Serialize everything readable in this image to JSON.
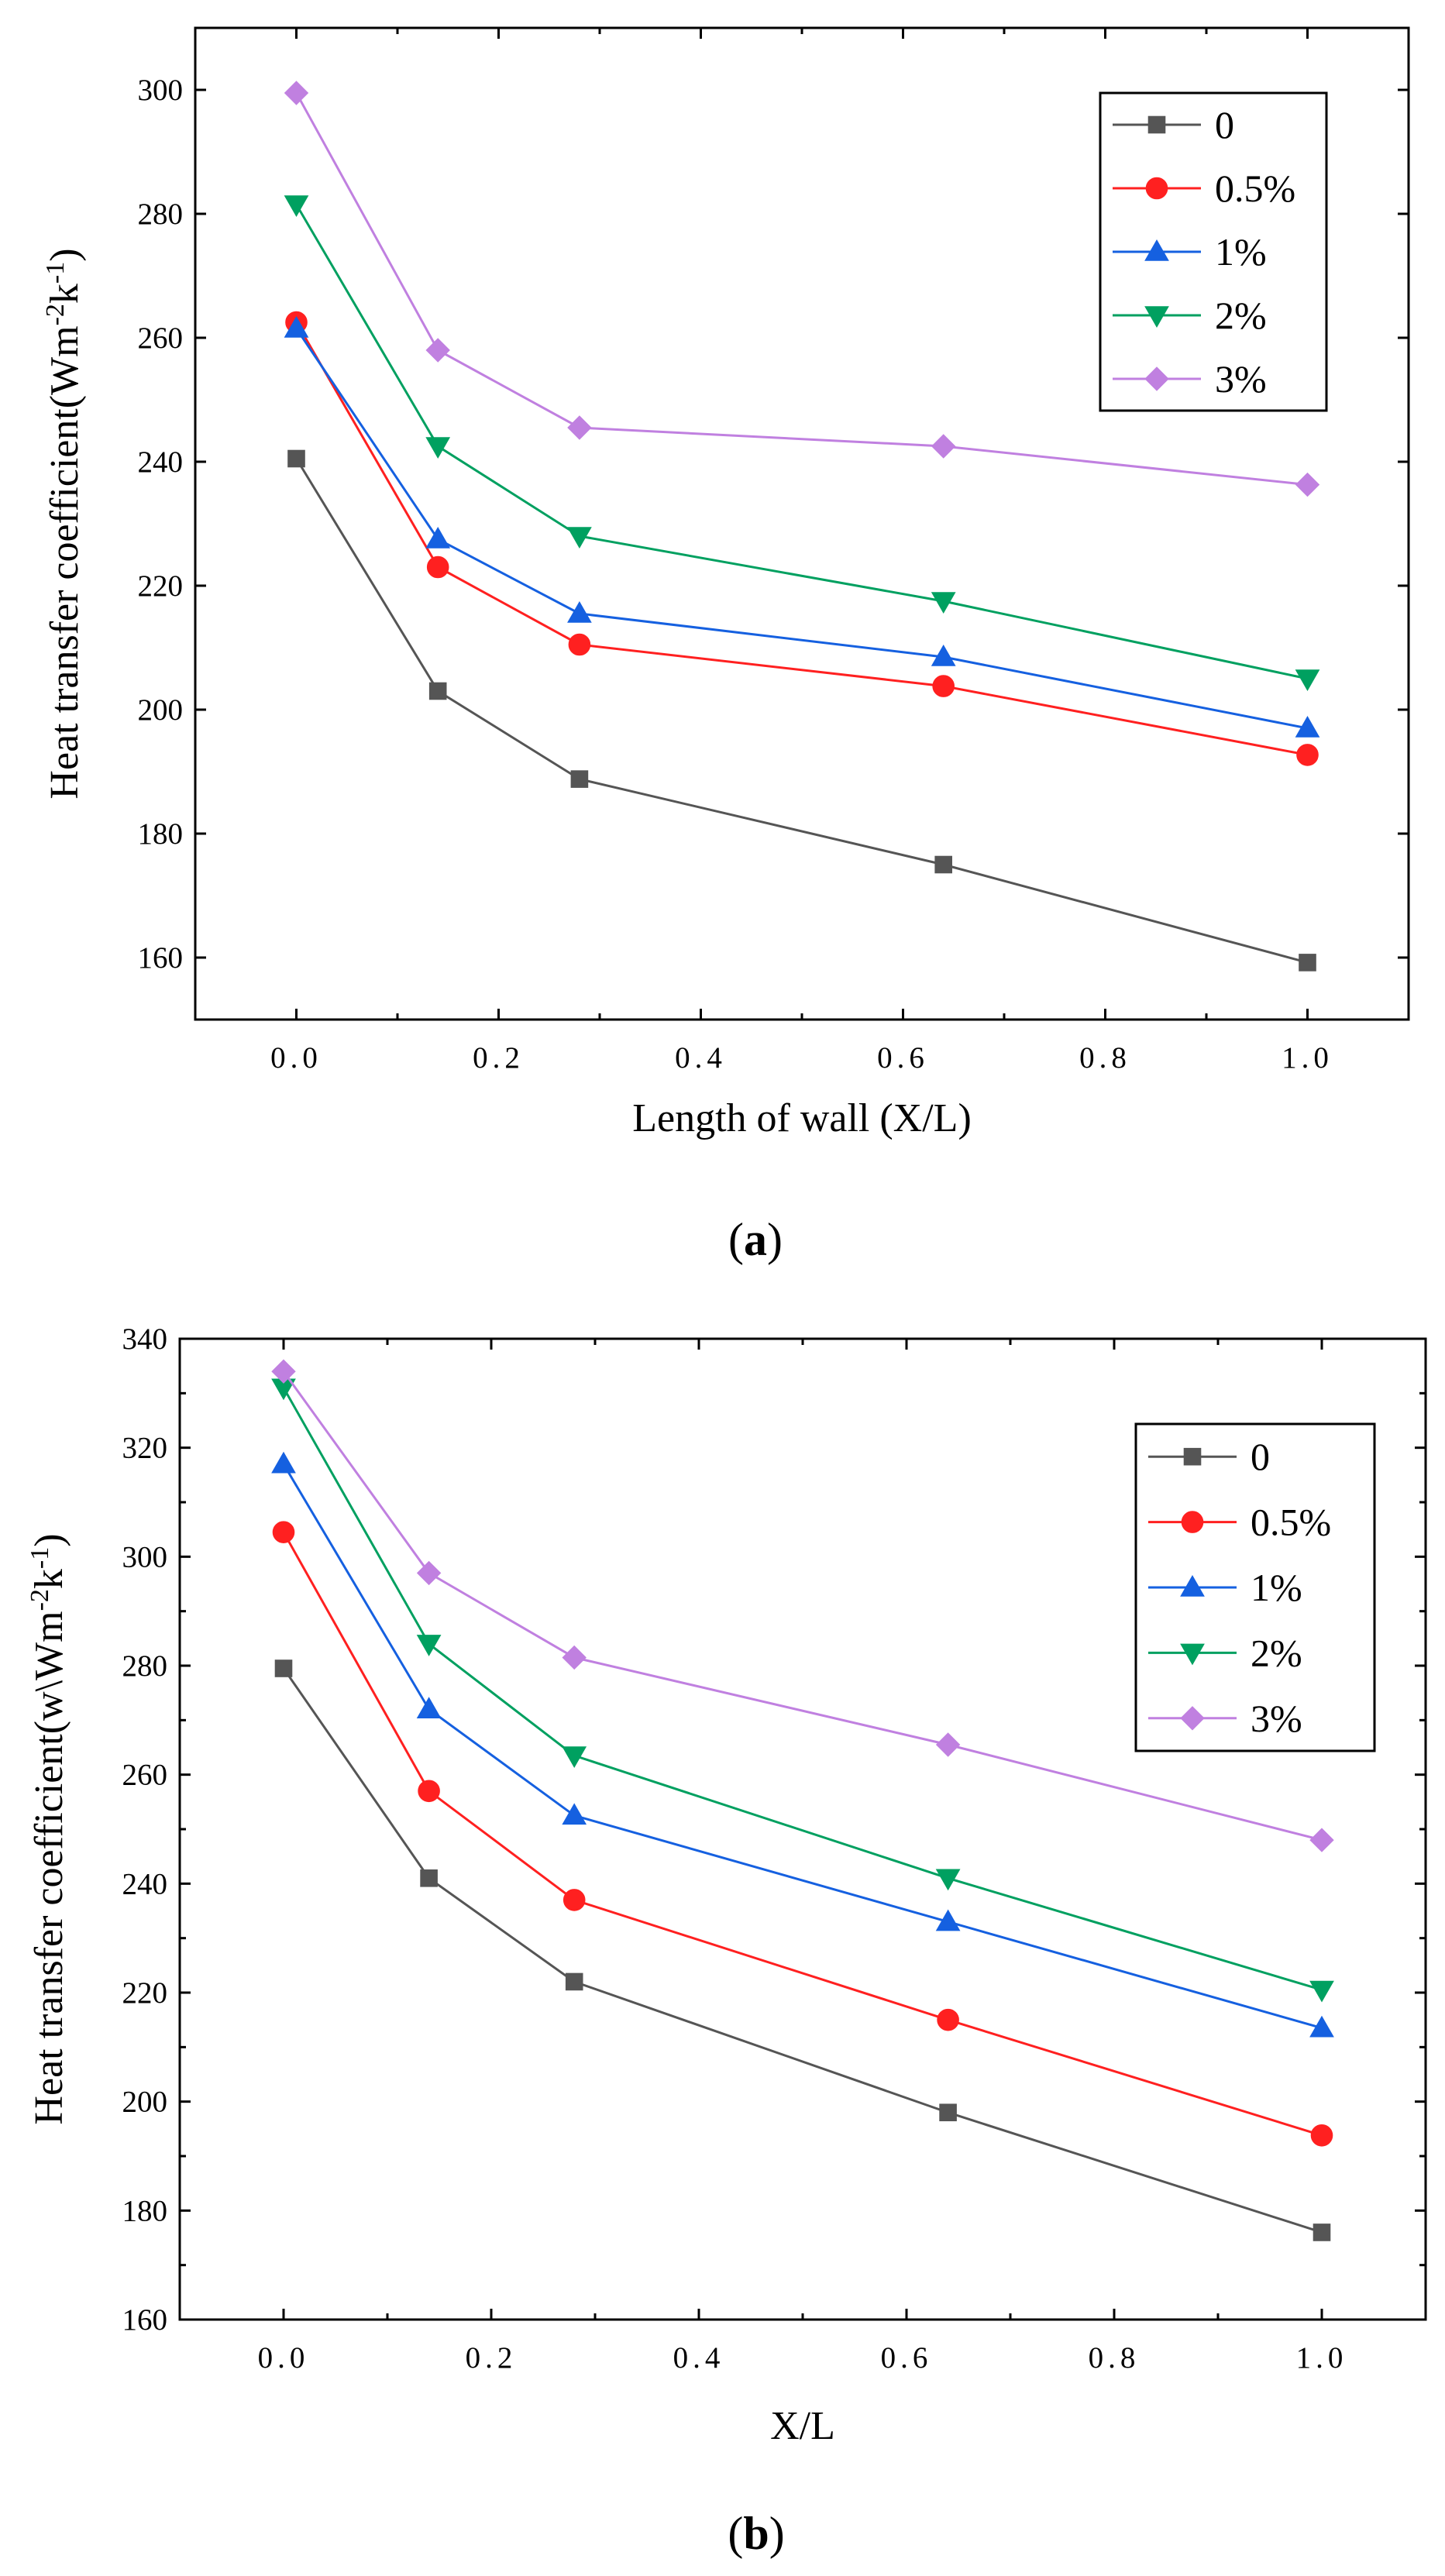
{
  "colors": {
    "0": "#555555",
    "0.5%": "#ff2020",
    "1%": "#1560e0",
    "2%": "#00a060",
    "3%": "#c080e0"
  },
  "chart_data": [
    {
      "type": "line",
      "caption": "a",
      "xlabel": "Length of wall (X/L)",
      "ylabel": "Heat transfer coefficient(Wm⁻²k⁻¹)",
      "xlim": [
        -0.1,
        1.1
      ],
      "ylim": [
        150,
        310
      ],
      "xticks": [
        0.0,
        0.2,
        0.4,
        0.6,
        0.8,
        1.0
      ],
      "xtick_labels": [
        "0.0",
        "0.2",
        "0.4",
        "0.6",
        "0.8",
        "1.0"
      ],
      "yticks": [
        160,
        180,
        200,
        220,
        240,
        260,
        280,
        300
      ],
      "ytick_labels": [
        "160",
        "180",
        "200",
        "220",
        "240",
        "260",
        "280",
        "300"
      ],
      "legend_position": "top-right",
      "x": [
        0.0,
        0.14,
        0.28,
        0.64,
        1.0
      ],
      "series": [
        {
          "name": "0",
          "marker": "square",
          "values": [
            240.5,
            203.0,
            188.8,
            175.0,
            159.2
          ]
        },
        {
          "name": "0.5%",
          "marker": "circle",
          "values": [
            262.5,
            223.0,
            210.5,
            203.8,
            192.7
          ]
        },
        {
          "name": "1%",
          "marker": "triangle-up",
          "values": [
            261.5,
            227.5,
            215.5,
            208.5,
            197.0
          ]
        },
        {
          "name": "2%",
          "marker": "triangle-down",
          "values": [
            281.5,
            242.5,
            228.0,
            217.5,
            205.0
          ]
        },
        {
          "name": "3%",
          "marker": "diamond",
          "values": [
            299.5,
            258.0,
            245.5,
            242.5,
            236.3
          ]
        }
      ]
    },
    {
      "type": "line",
      "caption": "b",
      "xlabel": "X/L",
      "ylabel": "Heat transfer coefficient(w\\Wm⁻²k⁻¹)",
      "xlim": [
        -0.1,
        1.1
      ],
      "ylim": [
        160,
        340
      ],
      "xticks": [
        0.0,
        0.2,
        0.4,
        0.6,
        0.8,
        1.0
      ],
      "xtick_labels": [
        "0.0",
        "0.2",
        "0.4",
        "0.6",
        "0.8",
        "1.0"
      ],
      "yticks": [
        160,
        180,
        200,
        220,
        240,
        260,
        280,
        300,
        320,
        340
      ],
      "ytick_labels": [
        "160",
        "180",
        "200",
        "220",
        "240",
        "260",
        "280",
        "300",
        "320",
        "340"
      ],
      "legend_position": "right",
      "x": [
        0.0,
        0.14,
        0.28,
        0.64,
        1.0
      ],
      "series": [
        {
          "name": "0",
          "marker": "square",
          "values": [
            279.5,
            241.0,
            222.0,
            198.0,
            176.0
          ]
        },
        {
          "name": "0.5%",
          "marker": "circle",
          "values": [
            304.5,
            257.0,
            237.0,
            215.0,
            193.8
          ]
        },
        {
          "name": "1%",
          "marker": "triangle-up",
          "values": [
            317.0,
            272.0,
            252.5,
            233.0,
            213.5
          ]
        },
        {
          "name": "2%",
          "marker": "triangle-down",
          "values": [
            331.0,
            284.0,
            263.5,
            241.0,
            220.5
          ]
        },
        {
          "name": "3%",
          "marker": "diamond",
          "values": [
            334.0,
            297.0,
            281.5,
            265.5,
            248.0
          ]
        }
      ]
    }
  ]
}
